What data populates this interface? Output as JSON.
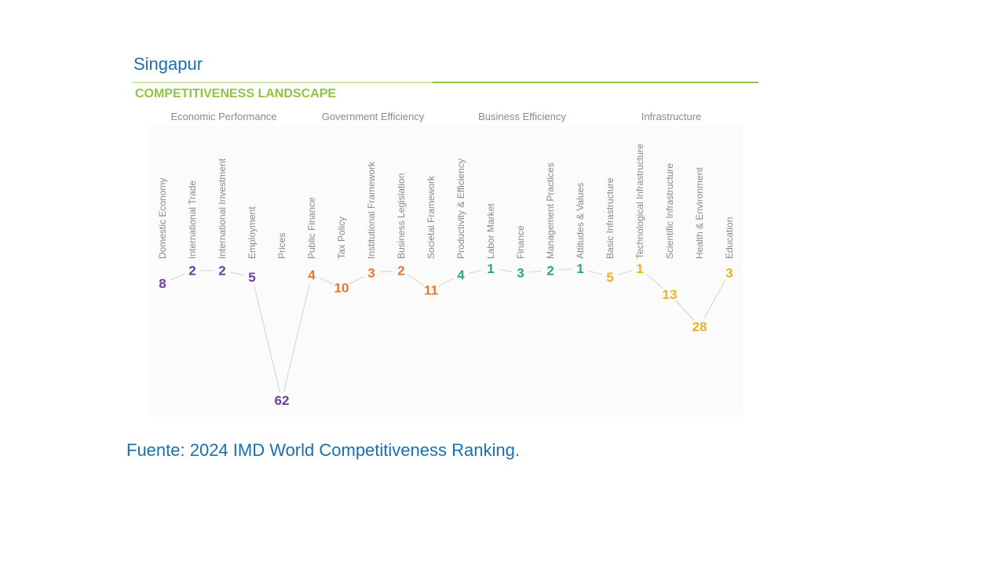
{
  "header": {
    "country": "Singapur",
    "section_title": "COMPETITIVENESS LANDSCAPE"
  },
  "footer": {
    "source": "Fuente: 2024 IMD World Competitiveness Ranking."
  },
  "colors": {
    "accent_green": "#8cc63f",
    "title_blue": "#1a6fb0",
    "economic_performance": "#6b3fa0",
    "government_efficiency": "#e8762c",
    "business_efficiency": "#2aa876",
    "infrastructure": "#e6b422",
    "connector": "#d9d9d9",
    "label_gray": "#8a8a8a"
  },
  "chart_data": {
    "type": "line",
    "title": "COMPETITIVENESS LANDSCAPE",
    "y_axis": "rank (1 = best), inverted",
    "groups": [
      {
        "name": "Economic Performance",
        "color": "#6b3fa0",
        "factors": [
          "Domestic Economy",
          "International Trade",
          "International Investment",
          "Employment",
          "Prices"
        ],
        "ranks": [
          8,
          2,
          2,
          5,
          62
        ]
      },
      {
        "name": "Government Efficiency",
        "color": "#e8762c",
        "factors": [
          "Public Finance",
          "Tax Policy",
          "Institutional Framework",
          "Business Legislation",
          "Societal Framework"
        ],
        "ranks": [
          4,
          10,
          3,
          2,
          11
        ]
      },
      {
        "name": "Business Efficiency",
        "color": "#2aa876",
        "factors": [
          "Productivity & Efficiency",
          "Labor Market",
          "Finance",
          "Management Practices",
          "Attitudes & Values"
        ],
        "ranks": [
          4,
          1,
          3,
          2,
          1
        ]
      },
      {
        "name": "Infrastructure",
        "color": "#e6b422",
        "factors": [
          "Basic Infrastructure",
          "Technological Infrastructure",
          "Scientific Infrastructure",
          "Health & Environment",
          "Education"
        ],
        "ranks": [
          5,
          1,
          13,
          28,
          3
        ]
      }
    ]
  }
}
